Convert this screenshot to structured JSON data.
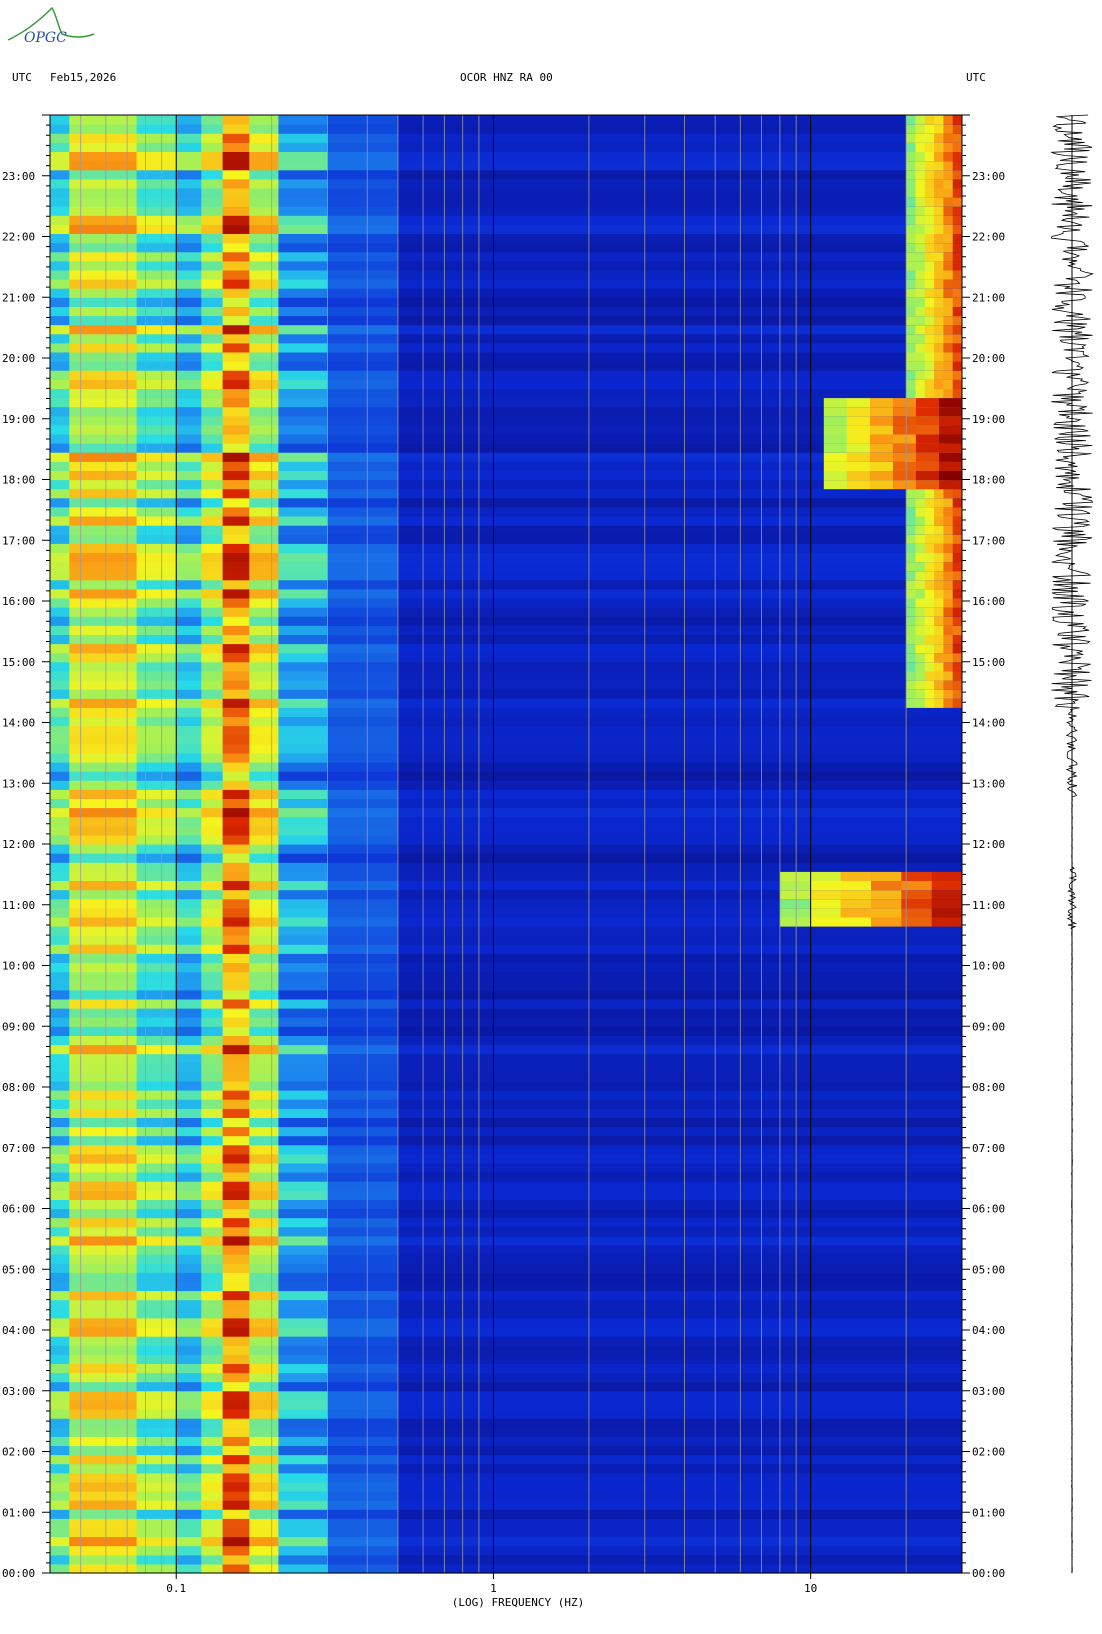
{
  "header": {
    "left_utc": "UTC",
    "date": "Feb15,2026",
    "station": "OCOR HNZ RA 00",
    "right_utc": "UTC",
    "logo_text": "OPGC"
  },
  "colors": {
    "background_low": "#0a1fb8",
    "mid": "#21b3f0",
    "yellow": "#f2f21a",
    "red": "#d02000",
    "maroon": "#8a0000"
  },
  "chart_data": {
    "type": "heatmap",
    "title": "",
    "xlabel": "(LOG) FREQUENCY (HZ)",
    "ylabel": "",
    "x_scale": "log",
    "xlim_hz": [
      0.04,
      30
    ],
    "x_ticks": [
      {
        "value": 0.1,
        "label": "0.1"
      },
      {
        "value": 1,
        "label": "1"
      },
      {
        "value": 10,
        "label": "10"
      }
    ],
    "y_range_hours": [
      0,
      24
    ],
    "y_ticks": [
      {
        "hour": 0,
        "label": "00:00"
      },
      {
        "hour": 1,
        "label": "01:00"
      },
      {
        "hour": 2,
        "label": "02:00"
      },
      {
        "hour": 3,
        "label": "03:00"
      },
      {
        "hour": 4,
        "label": "04:00"
      },
      {
        "hour": 5,
        "label": "05:00"
      },
      {
        "hour": 6,
        "label": "06:00"
      },
      {
        "hour": 7,
        "label": "07:00"
      },
      {
        "hour": 8,
        "label": "08:00"
      },
      {
        "hour": 9,
        "label": "09:00"
      },
      {
        "hour": 10,
        "label": "10:00"
      },
      {
        "hour": 11,
        "label": "11:00"
      },
      {
        "hour": 12,
        "label": "12:00"
      },
      {
        "hour": 13,
        "label": "13:00"
      },
      {
        "hour": 14,
        "label": "14:00"
      },
      {
        "hour": 15,
        "label": "15:00"
      },
      {
        "hour": 16,
        "label": "16:00"
      },
      {
        "hour": 17,
        "label": "17:00"
      },
      {
        "hour": 18,
        "label": "18:00"
      },
      {
        "hour": 19,
        "label": "19:00"
      },
      {
        "hour": 20,
        "label": "20:00"
      },
      {
        "hour": 21,
        "label": "21:00"
      },
      {
        "hour": 22,
        "label": "22:00"
      },
      {
        "hour": 23,
        "label": "23:00"
      }
    ],
    "frequency_bands": [
      {
        "f_min": 0.04,
        "f_max": 0.046,
        "level": 0.45
      },
      {
        "f_min": 0.046,
        "f_max": 0.075,
        "level": 0.62
      },
      {
        "f_min": 0.075,
        "f_max": 0.1,
        "level": 0.5
      },
      {
        "f_min": 0.1,
        "f_max": 0.12,
        "level": 0.4
      },
      {
        "f_min": 0.12,
        "f_max": 0.14,
        "level": 0.55
      },
      {
        "f_min": 0.14,
        "f_max": 0.17,
        "level": 0.78
      },
      {
        "f_min": 0.17,
        "f_max": 0.21,
        "level": 0.6
      },
      {
        "f_min": 0.21,
        "f_max": 0.3,
        "level": 0.33
      },
      {
        "f_min": 0.3,
        "f_max": 0.5,
        "level": 0.2
      },
      {
        "f_min": 0.5,
        "f_max": 30,
        "level": 0.08
      }
    ],
    "noise_bands_high_freq": [
      {
        "start_hour": 10.6,
        "end_hour": 11.6,
        "f_from": 8,
        "level": 0.9
      },
      {
        "start_hour": 14.2,
        "end_hour": 24,
        "f_from": 20,
        "level": 0.85
      },
      {
        "start_hour": 17.8,
        "end_hour": 19.4,
        "f_from": 11,
        "level": 0.95
      }
    ]
  },
  "seismogram": {
    "active_periods": [
      {
        "start_hour": 14.2,
        "end_hour": 24,
        "amplitude": 0.9
      },
      {
        "start_hour": 10.6,
        "end_hour": 11.6,
        "amplitude": 0.15
      },
      {
        "start_hour": 12.8,
        "end_hour": 14.2,
        "amplitude": 0.2
      }
    ]
  }
}
